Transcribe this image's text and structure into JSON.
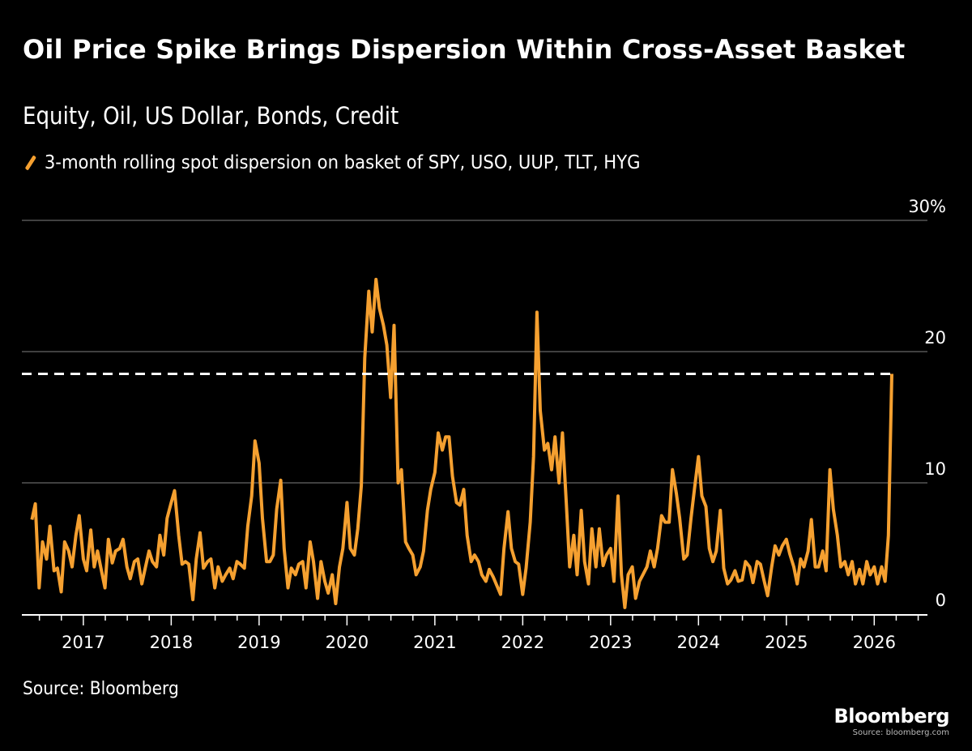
{
  "title": "Oil Price Spike Brings Dispersion Within Cross-Asset Basket",
  "subtitle": "Equity, Oil, US Dollar, Bonds, Credit",
  "source": "Source: Bloomberg",
  "logo": "Bloomberg",
  "logo_source": "Source: bloomberg.com",
  "colors": {
    "series": "#f5a030",
    "background": "#000000",
    "reference_line": "#ffffff",
    "grid": "#666666"
  },
  "chart_data": {
    "type": "line",
    "title": "Oil Price Spike Brings Dispersion Within Cross-Asset Basket",
    "subtitle": "Equity, Oil, US Dollar, Bonds, Credit",
    "legend": "top-left",
    "grid": true,
    "y_axis_position": "right",
    "ylim": [
      0,
      30
    ],
    "y_ticks": [
      {
        "value": 0,
        "label": "0"
      },
      {
        "value": 10,
        "label": "10"
      },
      {
        "value": 20,
        "label": "20"
      },
      {
        "value": 30,
        "label": "30%"
      }
    ],
    "x_ticks": [
      "2017",
      "2018",
      "2019",
      "2020",
      "2021",
      "2022",
      "2023",
      "2024",
      "2025",
      "2026"
    ],
    "xlim": [
      "2016-04-20",
      "2026-08-10"
    ],
    "reference_line": {
      "value": 18.3,
      "style": "dashed"
    },
    "series": [
      {
        "name": "3-month rolling spot dispersion on basket of SPY, USO, UUP, TLT, HYG",
        "points": [
          [
            "2016-06-01",
            7.2
          ],
          [
            "2016-06-15",
            8.4
          ],
          [
            "2016-07-01",
            2.0
          ],
          [
            "2016-07-15",
            5.5
          ],
          [
            "2016-08-01",
            4.2
          ],
          [
            "2016-08-15",
            6.7
          ],
          [
            "2016-09-01",
            3.3
          ],
          [
            "2016-09-15",
            3.5
          ],
          [
            "2016-10-01",
            1.7
          ],
          [
            "2016-10-15",
            5.5
          ],
          [
            "2016-11-01",
            4.8
          ],
          [
            "2016-11-15",
            3.6
          ],
          [
            "2016-12-01",
            6.0
          ],
          [
            "2016-12-15",
            7.5
          ],
          [
            "2017-01-01",
            4.2
          ],
          [
            "2017-01-15",
            3.3
          ],
          [
            "2017-02-01",
            6.4
          ],
          [
            "2017-02-15",
            3.6
          ],
          [
            "2017-03-01",
            4.8
          ],
          [
            "2017-03-15",
            3.5
          ],
          [
            "2017-04-01",
            2.0
          ],
          [
            "2017-04-15",
            5.7
          ],
          [
            "2017-05-01",
            3.9
          ],
          [
            "2017-05-15",
            4.8
          ],
          [
            "2017-06-01",
            5.0
          ],
          [
            "2017-06-15",
            5.7
          ],
          [
            "2017-07-01",
            3.6
          ],
          [
            "2017-07-15",
            2.7
          ],
          [
            "2017-08-01",
            4.0
          ],
          [
            "2017-08-15",
            4.2
          ],
          [
            "2017-09-01",
            2.3
          ],
          [
            "2017-09-15",
            3.5
          ],
          [
            "2017-10-01",
            4.8
          ],
          [
            "2017-10-15",
            4.0
          ],
          [
            "2017-11-01",
            3.6
          ],
          [
            "2017-11-15",
            6.0
          ],
          [
            "2017-12-01",
            4.5
          ],
          [
            "2017-12-15",
            7.3
          ],
          [
            "2018-01-01",
            8.5
          ],
          [
            "2018-01-15",
            9.4
          ],
          [
            "2018-02-01",
            6.0
          ],
          [
            "2018-02-15",
            3.8
          ],
          [
            "2018-03-01",
            4.0
          ],
          [
            "2018-03-15",
            3.8
          ],
          [
            "2018-04-01",
            1.1
          ],
          [
            "2018-04-15",
            4.2
          ],
          [
            "2018-05-01",
            6.2
          ],
          [
            "2018-05-15",
            3.5
          ],
          [
            "2018-06-01",
            4.0
          ],
          [
            "2018-06-15",
            4.2
          ],
          [
            "2018-07-01",
            2.0
          ],
          [
            "2018-07-15",
            3.6
          ],
          [
            "2018-08-01",
            2.5
          ],
          [
            "2018-08-15",
            3.0
          ],
          [
            "2018-09-01",
            3.5
          ],
          [
            "2018-09-15",
            2.7
          ],
          [
            "2018-10-01",
            4.0
          ],
          [
            "2018-10-15",
            3.8
          ],
          [
            "2018-11-01",
            3.5
          ],
          [
            "2018-11-15",
            6.7
          ],
          [
            "2018-12-01",
            9.0
          ],
          [
            "2018-12-15",
            13.2
          ],
          [
            "2019-01-01",
            11.5
          ],
          [
            "2019-01-15",
            7.3
          ],
          [
            "2019-02-01",
            4.0
          ],
          [
            "2019-02-15",
            4.0
          ],
          [
            "2019-03-01",
            4.5
          ],
          [
            "2019-03-15",
            8.0
          ],
          [
            "2019-04-01",
            10.2
          ],
          [
            "2019-04-15",
            5.0
          ],
          [
            "2019-05-01",
            2.0
          ],
          [
            "2019-05-15",
            3.5
          ],
          [
            "2019-06-01",
            3.0
          ],
          [
            "2019-06-15",
            3.8
          ],
          [
            "2019-07-01",
            4.0
          ],
          [
            "2019-07-15",
            2.0
          ],
          [
            "2019-08-01",
            5.5
          ],
          [
            "2019-08-15",
            4.0
          ],
          [
            "2019-09-01",
            1.2
          ],
          [
            "2019-09-15",
            4.0
          ],
          [
            "2019-10-01",
            2.5
          ],
          [
            "2019-10-15",
            1.6
          ],
          [
            "2019-11-01",
            3.0
          ],
          [
            "2019-11-15",
            0.8
          ],
          [
            "2019-12-01",
            3.6
          ],
          [
            "2019-12-15",
            5.0
          ],
          [
            "2020-01-01",
            8.5
          ],
          [
            "2020-01-15",
            5.0
          ],
          [
            "2020-02-01",
            4.5
          ],
          [
            "2020-02-15",
            6.5
          ],
          [
            "2020-03-01",
            9.8
          ],
          [
            "2020-03-15",
            19.5
          ],
          [
            "2020-04-01",
            24.6
          ],
          [
            "2020-04-15",
            21.5
          ],
          [
            "2020-05-01",
            25.5
          ],
          [
            "2020-05-15",
            23.3
          ],
          [
            "2020-06-01",
            22.0
          ],
          [
            "2020-06-15",
            20.5
          ],
          [
            "2020-07-01",
            16.5
          ],
          [
            "2020-07-15",
            22.0
          ],
          [
            "2020-08-01",
            10.0
          ],
          [
            "2020-08-15",
            11.0
          ],
          [
            "2020-09-01",
            5.5
          ],
          [
            "2020-09-15",
            5.0
          ],
          [
            "2020-10-01",
            4.5
          ],
          [
            "2020-10-15",
            3.0
          ],
          [
            "2020-11-01",
            3.6
          ],
          [
            "2020-11-15",
            4.8
          ],
          [
            "2020-12-01",
            7.9
          ],
          [
            "2020-12-15",
            9.5
          ],
          [
            "2021-01-01",
            10.8
          ],
          [
            "2021-01-15",
            13.8
          ],
          [
            "2021-02-01",
            12.5
          ],
          [
            "2021-02-15",
            13.5
          ],
          [
            "2021-03-01",
            13.5
          ],
          [
            "2021-03-15",
            10.5
          ],
          [
            "2021-04-01",
            8.5
          ],
          [
            "2021-04-15",
            8.3
          ],
          [
            "2021-05-01",
            9.5
          ],
          [
            "2021-05-15",
            6.0
          ],
          [
            "2021-06-01",
            4.0
          ],
          [
            "2021-06-15",
            4.5
          ],
          [
            "2021-07-01",
            4.0
          ],
          [
            "2021-07-15",
            3.0
          ],
          [
            "2021-08-01",
            2.5
          ],
          [
            "2021-08-15",
            3.4
          ],
          [
            "2021-09-01",
            2.8
          ],
          [
            "2021-09-15",
            2.2
          ],
          [
            "2021-10-01",
            1.5
          ],
          [
            "2021-10-15",
            5.0
          ],
          [
            "2021-11-01",
            7.8
          ],
          [
            "2021-11-15",
            5.0
          ],
          [
            "2021-12-01",
            4.0
          ],
          [
            "2021-12-15",
            3.8
          ],
          [
            "2022-01-01",
            1.5
          ],
          [
            "2022-01-15",
            3.5
          ],
          [
            "2022-02-01",
            7.0
          ],
          [
            "2022-02-15",
            12.0
          ],
          [
            "2022-03-01",
            23.0
          ],
          [
            "2022-03-15",
            15.5
          ],
          [
            "2022-04-01",
            12.5
          ],
          [
            "2022-04-15",
            13.0
          ],
          [
            "2022-05-01",
            11.0
          ],
          [
            "2022-05-15",
            13.5
          ],
          [
            "2022-06-01",
            10.0
          ],
          [
            "2022-06-15",
            13.8
          ],
          [
            "2022-07-01",
            8.5
          ],
          [
            "2022-07-15",
            3.6
          ],
          [
            "2022-08-01",
            6.0
          ],
          [
            "2022-08-15",
            3.0
          ],
          [
            "2022-09-01",
            7.9
          ],
          [
            "2022-09-15",
            4.0
          ],
          [
            "2022-10-01",
            2.3
          ],
          [
            "2022-10-15",
            6.5
          ],
          [
            "2022-11-01",
            3.6
          ],
          [
            "2022-11-15",
            6.5
          ],
          [
            "2022-12-01",
            3.7
          ],
          [
            "2022-12-15",
            4.5
          ],
          [
            "2023-01-01",
            5.0
          ],
          [
            "2023-01-15",
            2.5
          ],
          [
            "2023-02-01",
            9.0
          ],
          [
            "2023-02-15",
            3.0
          ],
          [
            "2023-03-01",
            0.5
          ],
          [
            "2023-03-15",
            3.0
          ],
          [
            "2023-04-01",
            3.6
          ],
          [
            "2023-04-15",
            1.2
          ],
          [
            "2023-05-01",
            2.5
          ],
          [
            "2023-05-15",
            3.0
          ],
          [
            "2023-06-01",
            3.6
          ],
          [
            "2023-06-15",
            4.8
          ],
          [
            "2023-07-01",
            3.6
          ],
          [
            "2023-07-15",
            5.0
          ],
          [
            "2023-08-01",
            7.5
          ],
          [
            "2023-08-15",
            7.0
          ],
          [
            "2023-09-01",
            7.0
          ],
          [
            "2023-09-15",
            11.0
          ],
          [
            "2023-10-01",
            9.2
          ],
          [
            "2023-10-15",
            7.3
          ],
          [
            "2023-11-01",
            4.2
          ],
          [
            "2023-11-15",
            4.5
          ],
          [
            "2023-12-01",
            7.3
          ],
          [
            "2023-12-15",
            9.5
          ],
          [
            "2024-01-01",
            12.0
          ],
          [
            "2024-01-15",
            9.0
          ],
          [
            "2024-02-01",
            8.2
          ],
          [
            "2024-02-15",
            5.0
          ],
          [
            "2024-03-01",
            4.0
          ],
          [
            "2024-03-15",
            4.8
          ],
          [
            "2024-04-01",
            7.9
          ],
          [
            "2024-04-15",
            3.5
          ],
          [
            "2024-05-01",
            2.3
          ],
          [
            "2024-05-15",
            2.6
          ],
          [
            "2024-06-01",
            3.3
          ],
          [
            "2024-06-15",
            2.5
          ],
          [
            "2024-07-01",
            2.6
          ],
          [
            "2024-07-15",
            4.0
          ],
          [
            "2024-08-01",
            3.6
          ],
          [
            "2024-08-15",
            2.4
          ],
          [
            "2024-09-01",
            4.0
          ],
          [
            "2024-09-15",
            3.8
          ],
          [
            "2024-10-01",
            2.5
          ],
          [
            "2024-10-15",
            1.4
          ],
          [
            "2024-11-01",
            3.6
          ],
          [
            "2024-11-15",
            5.2
          ],
          [
            "2024-12-01",
            4.5
          ],
          [
            "2024-12-15",
            5.2
          ],
          [
            "2025-01-01",
            5.7
          ],
          [
            "2025-01-15",
            4.6
          ],
          [
            "2025-02-01",
            3.6
          ],
          [
            "2025-02-15",
            2.3
          ],
          [
            "2025-03-01",
            4.2
          ],
          [
            "2025-03-15",
            3.6
          ],
          [
            "2025-04-01",
            4.8
          ],
          [
            "2025-04-15",
            7.2
          ],
          [
            "2025-05-01",
            3.6
          ],
          [
            "2025-05-15",
            3.6
          ],
          [
            "2025-06-01",
            4.8
          ],
          [
            "2025-06-15",
            3.3
          ],
          [
            "2025-07-01",
            11.0
          ],
          [
            "2025-07-15",
            8.0
          ],
          [
            "2025-08-01",
            6.0
          ],
          [
            "2025-08-15",
            3.6
          ],
          [
            "2025-09-01",
            4.0
          ],
          [
            "2025-09-15",
            3.0
          ],
          [
            "2025-10-01",
            4.0
          ],
          [
            "2025-10-15",
            2.3
          ],
          [
            "2025-11-01",
            3.4
          ],
          [
            "2025-11-15",
            2.3
          ],
          [
            "2025-12-01",
            4.0
          ],
          [
            "2025-12-15",
            3.0
          ],
          [
            "2026-01-01",
            3.6
          ],
          [
            "2026-01-15",
            2.3
          ],
          [
            "2026-02-01",
            3.6
          ],
          [
            "2026-02-15",
            2.5
          ],
          [
            "2026-03-01",
            6.0
          ],
          [
            "2026-03-15",
            18.3
          ]
        ]
      }
    ]
  }
}
